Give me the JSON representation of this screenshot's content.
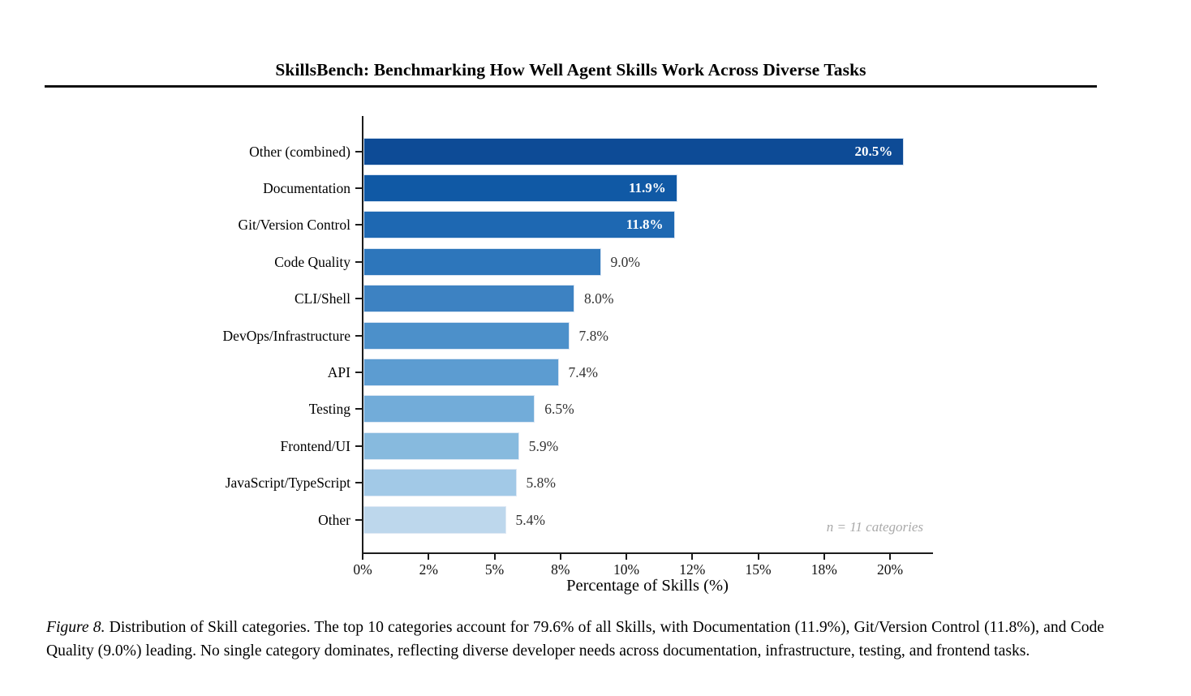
{
  "header": {
    "title": "SkillsBench: Benchmarking How Well Agent Skills Work Across Diverse Tasks"
  },
  "chart_data": {
    "type": "bar",
    "orientation": "horizontal",
    "title": "",
    "xlabel": "Percentage of Skills (%)",
    "ylabel": "",
    "xlim": [
      0,
      21.6
    ],
    "grid": false,
    "legend": false,
    "annotation": "n = 11 categories",
    "categories": [
      "Other (combined)",
      "Documentation",
      "Git/Version Control",
      "Code Quality",
      "CLI/Shell",
      "DevOps/Infrastructure",
      "API",
      "Testing",
      "Frontend/UI",
      "JavaScript/TypeScript",
      "Other"
    ],
    "values": [
      20.5,
      11.9,
      11.8,
      9.0,
      8.0,
      7.8,
      7.4,
      6.5,
      5.9,
      5.8,
      5.4
    ],
    "value_labels": [
      "20.5%",
      "11.9%",
      "11.8%",
      "9.0%",
      "8.0%",
      "7.8%",
      "7.4%",
      "6.5%",
      "5.9%",
      "5.8%",
      "5.4%"
    ],
    "value_label_inside": [
      true,
      true,
      true,
      false,
      false,
      false,
      false,
      false,
      false,
      false,
      false
    ],
    "bar_colors": [
      "#0d4b96",
      "#1059a5",
      "#1e68b2",
      "#2d76bb",
      "#3d82c2",
      "#4c90ca",
      "#5c9cd1",
      "#72acd9",
      "#87bade",
      "#a2c9e7",
      "#bdd7ec"
    ],
    "x_ticks": [
      {
        "value": 0,
        "label": "0%"
      },
      {
        "value": 2.5,
        "label": "2%"
      },
      {
        "value": 5,
        "label": "5%"
      },
      {
        "value": 7.5,
        "label": "8%"
      },
      {
        "value": 10,
        "label": "10%"
      },
      {
        "value": 12.5,
        "label": "12%"
      },
      {
        "value": 15,
        "label": "15%"
      },
      {
        "value": 17.5,
        "label": "18%"
      },
      {
        "value": 20,
        "label": "20%"
      }
    ],
    "colors": {
      "inside_label": "#ffffff",
      "outside_label": "#333333",
      "annotation": "#a9a9a9",
      "axis": "#1c1c1c"
    }
  },
  "caption": {
    "label": "Figure 8.",
    "text": "Distribution of Skill categories. The top 10 categories account for 79.6% of all Skills, with Documentation (11.9%), Git/Version Control (11.8%), and Code Quality (9.0%) leading. No single category dominates, reflecting diverse developer needs across documentation, infrastructure, testing, and frontend tasks."
  }
}
